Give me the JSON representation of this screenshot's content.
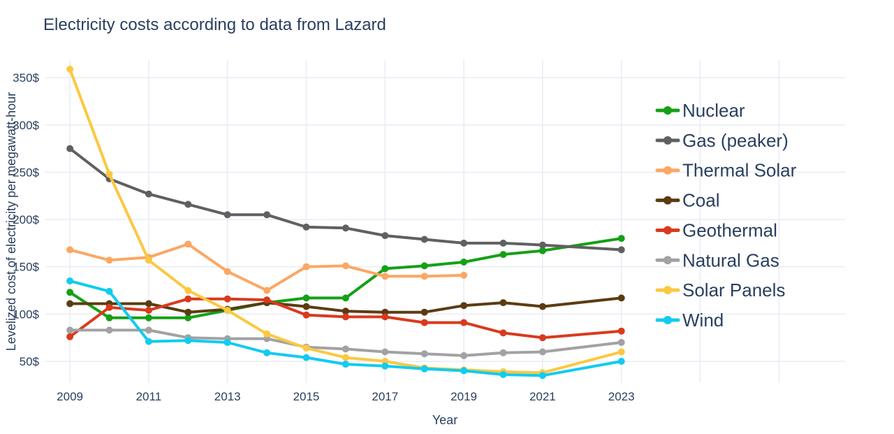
{
  "style": {
    "background": "#ffffff",
    "text_color": "#2a3f5f",
    "grid_color": "#e9edf6"
  },
  "chart_data": {
    "type": "line",
    "title": "Electricity costs according to data from Lazard",
    "xlabel": "Year",
    "ylabel": "Levelized cost of electricity per megawatt-hour",
    "grid": true,
    "legend_position": "right",
    "xlim": [
      2008.36,
      2028.68
    ],
    "ylim": [
      27.1,
      368.6
    ],
    "x": [
      2009,
      2010,
      2011,
      2012,
      2013,
      2014,
      2015,
      2016,
      2017,
      2018,
      2019,
      2020,
      2021,
      2023
    ],
    "x_tick_values": [
      2009,
      2011,
      2013,
      2015,
      2017,
      2019,
      2021,
      2023
    ],
    "x_tick_labels": [
      "2009",
      "2011",
      "2013",
      "2015",
      "2017",
      "2019",
      "2021",
      "2023"
    ],
    "x_grid_unlabeled": [
      2025,
      2027
    ],
    "y_tick_values": [
      50,
      100,
      150,
      200,
      250,
      300,
      350
    ],
    "y_tick_labels": [
      "50$",
      "100$",
      "150$",
      "200$",
      "250$",
      "300$",
      "350$"
    ],
    "series": [
      {
        "name": "Nuclear",
        "color": "#15a015",
        "values": [
          123,
          96,
          96,
          96,
          104,
          112,
          117,
          117,
          148,
          151,
          155,
          163,
          167,
          180
        ]
      },
      {
        "name": "Gas (peaker)",
        "color": "#606060",
        "values": [
          275,
          243,
          227,
          216,
          205,
          205,
          192,
          191,
          183,
          179,
          175,
          175,
          173,
          168
        ]
      },
      {
        "name": "Thermal Solar",
        "color": "#fba764",
        "values": [
          168,
          157,
          160,
          174,
          145,
          125,
          150,
          151,
          140,
          140,
          141,
          null,
          null,
          null
        ]
      },
      {
        "name": "Coal",
        "color": "#5b3c11",
        "values": [
          111,
          111,
          111,
          102,
          105,
          112,
          108,
          103,
          102,
          102,
          109,
          112,
          108,
          117
        ]
      },
      {
        "name": "Geothermal",
        "color": "#d93a1e",
        "values": [
          76,
          107,
          104,
          116,
          116,
          115,
          99,
          97,
          97,
          91,
          91,
          80,
          75,
          82
        ]
      },
      {
        "name": "Natural Gas",
        "color": "#a2a2a2",
        "values": [
          83,
          83,
          83,
          75,
          74,
          74,
          65,
          63,
          60,
          58,
          56,
          59,
          60,
          70
        ]
      },
      {
        "name": "Solar Panels",
        "color": "#fcc840",
        "values": [
          359,
          248,
          157,
          125,
          104,
          79,
          64,
          54,
          50,
          43,
          41,
          39,
          38,
          60
        ]
      },
      {
        "name": "Wind",
        "color": "#12cbf0",
        "values": [
          135,
          124,
          71,
          72,
          70,
          59,
          54,
          47,
          45,
          42,
          40,
          36,
          35,
          50
        ]
      }
    ]
  }
}
